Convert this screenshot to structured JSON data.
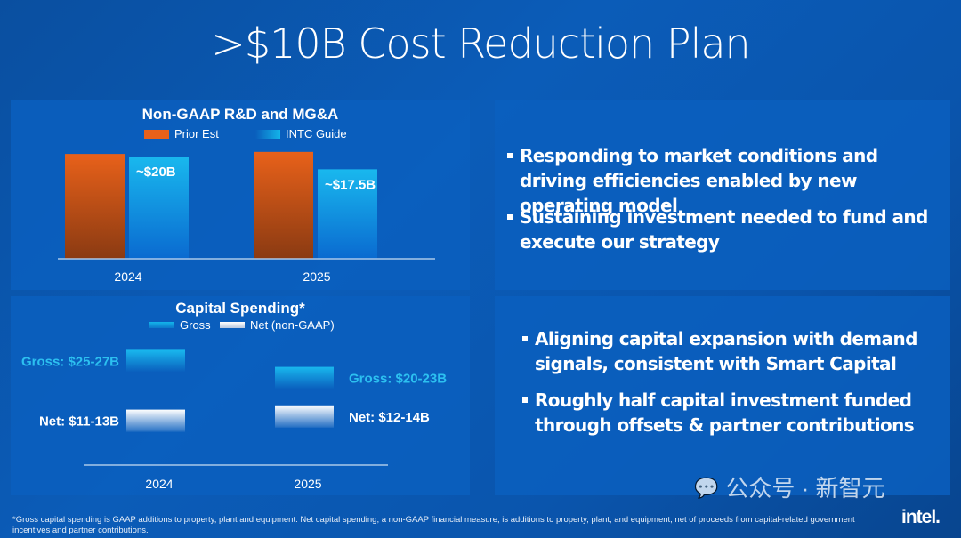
{
  "title": ">$10B Cost Reduction Plan",
  "chart_data": [
    {
      "type": "bar",
      "title": "Non-GAAP R&D and MG&A",
      "categories": [
        "2024",
        "2025"
      ],
      "series": [
        {
          "name": "Prior Est",
          "values": [
            20.5,
            20.9
          ],
          "color": "#e8611a"
        },
        {
          "name": "INTC Guide",
          "values": [
            20,
            17.5
          ],
          "color": "#13b5ea"
        }
      ],
      "data_labels": [
        "",
        "",
        "~$20B",
        "~$17.5B"
      ],
      "ylim": [
        0,
        22
      ],
      "grid": false,
      "legend": "top"
    },
    {
      "type": "bar",
      "title": "Capital Spending*",
      "categories": [
        "2024",
        "2025"
      ],
      "series": [
        {
          "name": "Gross",
          "ranges": [
            [
              25,
              27
            ],
            [
              20,
              23
            ]
          ],
          "labels": [
            "Gross: $25-27B",
            "Gross: $20-23B"
          ],
          "color": "#13b5ea"
        },
        {
          "name": "Net (non-GAAP)",
          "ranges": [
            [
              11,
              13
            ],
            [
              12,
              14
            ]
          ],
          "labels": [
            "Net: $11-13B",
            "Net: $12-14B"
          ],
          "color": "#ffffff"
        }
      ],
      "grid": false,
      "legend": "top"
    }
  ],
  "bullets_top": [
    "Responding to market conditions and driving efficiencies enabled by new operating model",
    "Sustaining investment needed to fund and execute our strategy"
  ],
  "bullets_bottom": [
    "Aligning capital expansion with demand signals, consistent with Smart Capital",
    "Roughly half capital investment funded through offsets & partner contributions"
  ],
  "footnote": "*Gross capital spending is GAAP additions to property, plant and equipment. Net capital spending, a non-GAAP financial measure, is additions to property, plant, and equipment, net of proceeds from capital-related government incentives and partner contributions.",
  "watermark": "公众号 · 新智元",
  "logo": "intel."
}
